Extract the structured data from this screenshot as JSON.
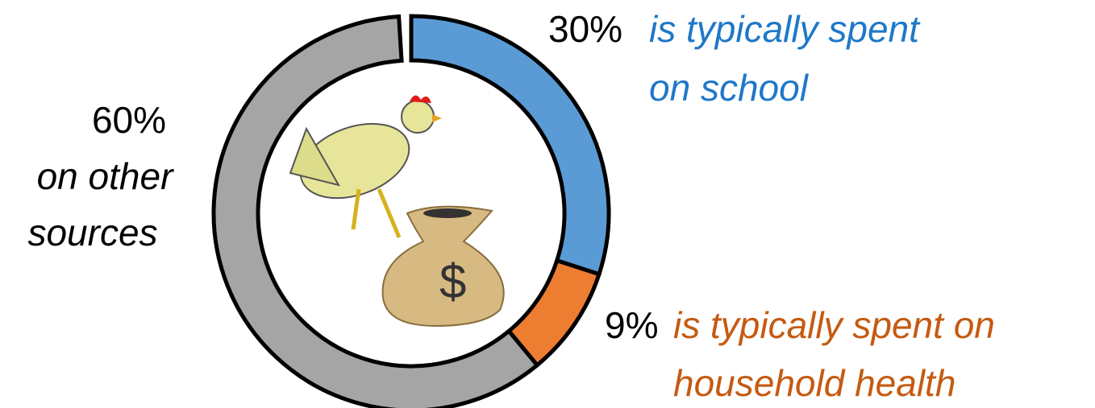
{
  "chart_data": {
    "type": "donut",
    "values": [
      30,
      9,
      60
    ],
    "value_labels": [
      "30%",
      "9%",
      "60%"
    ],
    "category_lines": [
      [
        "is typically spent",
        "on school"
      ],
      [
        "is typically spent on",
        "household health"
      ],
      [
        "on other",
        "sources"
      ]
    ],
    "colors": [
      "#5b9bd5",
      "#ed7d31",
      "#a5a5a5"
    ],
    "label_colors": [
      "#1f78c8",
      "#c55a11",
      "#000000"
    ]
  }
}
